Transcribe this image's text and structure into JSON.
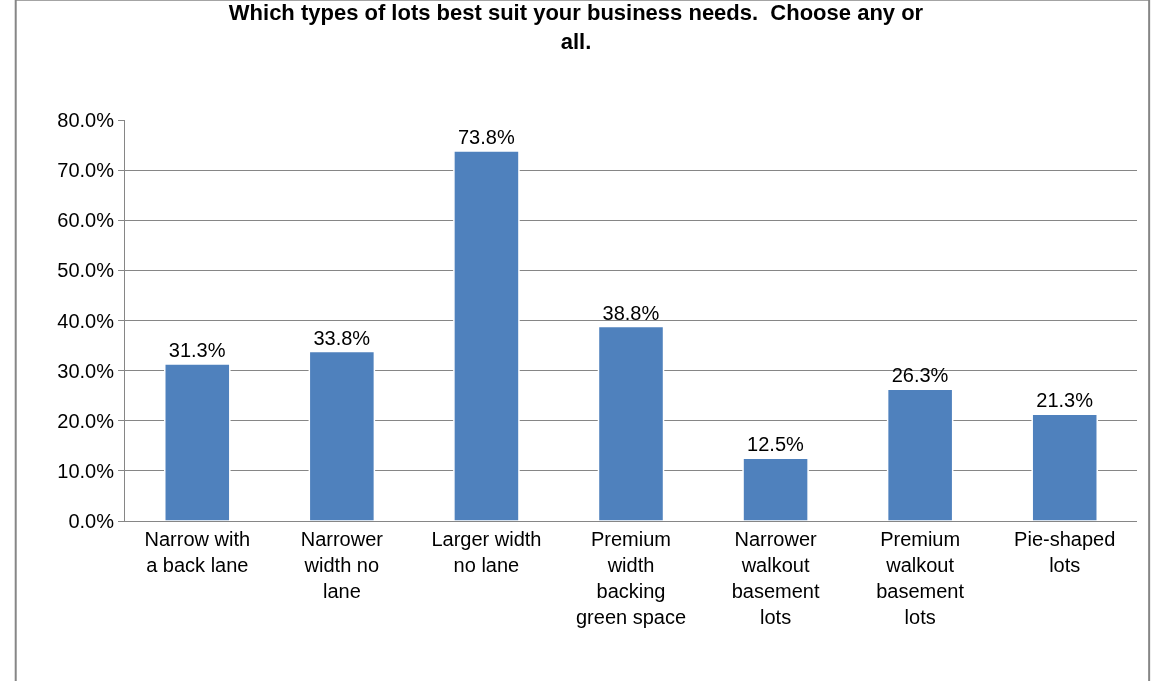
{
  "chart_data": {
    "type": "bar",
    "title": "Which types of lots best suit your business needs.  Choose any or all.",
    "categories": [
      "Narrow with a back lane",
      "Narrower width no lane",
      "Larger width no lane",
      "Premium width backing green space",
      "Narrower walkout basement lots",
      "Premium walkout basement lots",
      "Pie-shaped lots"
    ],
    "values": [
      31.3,
      33.8,
      73.8,
      38.8,
      12.5,
      26.3,
      21.3
    ],
    "value_labels": [
      "31.3%",
      "33.8%",
      "73.8%",
      "38.8%",
      "12.5%",
      "26.3%",
      "21.3%"
    ],
    "color": "#4f81bd",
    "ylim": [
      0,
      80
    ],
    "yticks": [
      {
        "value": 0,
        "label": "0.0%"
      },
      {
        "value": 10,
        "label": "10.0%"
      },
      {
        "value": 20,
        "label": "20.0%"
      },
      {
        "value": 30,
        "label": "30.0%"
      },
      {
        "value": 40,
        "label": "40.0%"
      },
      {
        "value": 50,
        "label": "50.0%"
      },
      {
        "value": 60,
        "label": "60.0%"
      },
      {
        "value": 70,
        "label": "70.0%"
      },
      {
        "value": 80,
        "label": "80.0%"
      }
    ],
    "grid": "y",
    "legend": false
  }
}
